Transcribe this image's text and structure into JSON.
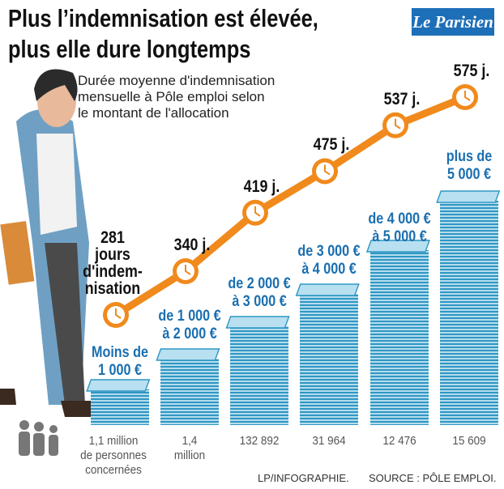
{
  "brand": "Le Parisien",
  "chart_data": {
    "type": "line",
    "title": "Plus l’indemnisation est élevée,\nplus elle dure longtemps",
    "subtitle": "Durée moyenne d'indemnisation\nmensuelle à Pôle emploi selon\nle montant de l'allocation",
    "categories": [
      "Moins de\n1 000 €",
      "de 1 000 €\nà 2 000 €",
      "de 2 000 €\nà 3 000 €",
      "de 3 000 €\nà 4 000 €",
      "de 4 000 €\nà 5 000 €",
      "plus de\n5 000 €"
    ],
    "values": [
      281,
      340,
      419,
      475,
      537,
      575
    ],
    "value_labels": [
      "281\njours\nd'indem-\nnisation",
      "340 j.",
      "419 j.",
      "475 j.",
      "537 j.",
      "575 j."
    ],
    "people_labels": [
      "1,1 million\nde personnes\nconcernées",
      "1,4\nmillion",
      "132 892",
      "31 964",
      "12 476",
      "15 609"
    ],
    "color": "#f08a1c",
    "credit": "LP/INFOGRAPHIE.",
    "source": "SOURCE : PÔLE EMPLOI."
  }
}
